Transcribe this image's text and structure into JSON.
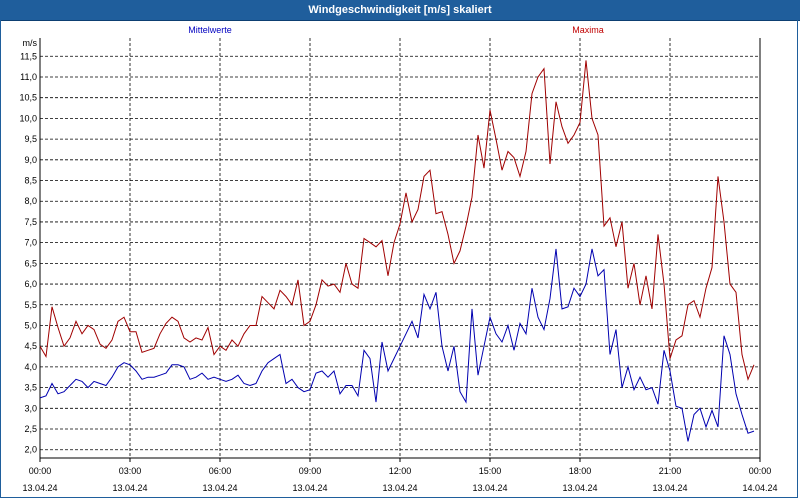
{
  "window": {
    "title": "Windgeschwindigkeit [m/s] skaliert"
  },
  "chart_data": {
    "type": "line",
    "ylabel": "m/s",
    "ylim": [
      1.8,
      11.7
    ],
    "yticks": [
      "2,0",
      "2,5",
      "3,0",
      "3,5",
      "4,0",
      "4,5",
      "5,0",
      "5,5",
      "6,0",
      "6,5",
      "7,0",
      "7,5",
      "8,0",
      "8,5",
      "9,0",
      "9,5",
      "10,0",
      "10,5",
      "11,0",
      "11,5"
    ],
    "ytick_values": [
      2.0,
      2.5,
      3.0,
      3.5,
      4.0,
      4.5,
      5.0,
      5.5,
      6.0,
      6.5,
      7.0,
      7.5,
      8.0,
      8.5,
      9.0,
      9.5,
      10.0,
      10.5,
      11.0,
      11.5
    ],
    "xlim": [
      0,
      24
    ],
    "xticks": [
      {
        "h": 0,
        "time": "00:00",
        "date": "13.04.24"
      },
      {
        "h": 3,
        "time": "03:00",
        "date": "13.04.24"
      },
      {
        "h": 6,
        "time": "06:00",
        "date": "13.04.24"
      },
      {
        "h": 9,
        "time": "09:00",
        "date": "13.04.24"
      },
      {
        "h": 12,
        "time": "12:00",
        "date": "13.04.24"
      },
      {
        "h": 15,
        "time": "15:00",
        "date": "13.04.24"
      },
      {
        "h": 18,
        "time": "18:00",
        "date": "13.04.24"
      },
      {
        "h": 21,
        "time": "21:00",
        "date": "13.04.24"
      },
      {
        "h": 24,
        "time": "00:00",
        "date": "14.04.24"
      }
    ],
    "grid": true,
    "legend_placement": "top",
    "series": [
      {
        "name": "Mittelwerte",
        "color": "#0000b0",
        "legend_color": "#0000c0",
        "points": [
          [
            0.0,
            3.25
          ],
          [
            0.2,
            3.3
          ],
          [
            0.4,
            3.6
          ],
          [
            0.6,
            3.35
          ],
          [
            0.8,
            3.4
          ],
          [
            1.0,
            3.55
          ],
          [
            1.2,
            3.7
          ],
          [
            1.4,
            3.65
          ],
          [
            1.6,
            3.5
          ],
          [
            1.8,
            3.65
          ],
          [
            2.0,
            3.6
          ],
          [
            2.2,
            3.55
          ],
          [
            2.4,
            3.75
          ],
          [
            2.6,
            4.0
          ],
          [
            2.8,
            4.1
          ],
          [
            3.0,
            4.05
          ],
          [
            3.2,
            3.9
          ],
          [
            3.4,
            3.7
          ],
          [
            3.6,
            3.75
          ],
          [
            3.8,
            3.75
          ],
          [
            4.0,
            3.8
          ],
          [
            4.2,
            3.85
          ],
          [
            4.4,
            4.05
          ],
          [
            4.6,
            4.05
          ],
          [
            4.8,
            4.0
          ],
          [
            5.0,
            3.7
          ],
          [
            5.2,
            3.75
          ],
          [
            5.4,
            3.85
          ],
          [
            5.6,
            3.7
          ],
          [
            5.8,
            3.75
          ],
          [
            6.0,
            3.7
          ],
          [
            6.2,
            3.65
          ],
          [
            6.4,
            3.7
          ],
          [
            6.6,
            3.8
          ],
          [
            6.8,
            3.6
          ],
          [
            7.0,
            3.55
          ],
          [
            7.2,
            3.6
          ],
          [
            7.4,
            3.9
          ],
          [
            7.6,
            4.1
          ],
          [
            7.8,
            4.2
          ],
          [
            8.0,
            4.3
          ],
          [
            8.2,
            3.6
          ],
          [
            8.4,
            3.7
          ],
          [
            8.6,
            3.5
          ],
          [
            8.8,
            3.4
          ],
          [
            9.0,
            3.45
          ],
          [
            9.2,
            3.85
          ],
          [
            9.4,
            3.9
          ],
          [
            9.6,
            3.75
          ],
          [
            9.8,
            3.9
          ],
          [
            10.0,
            3.35
          ],
          [
            10.2,
            3.55
          ],
          [
            10.4,
            3.55
          ],
          [
            10.6,
            3.3
          ],
          [
            10.8,
            4.4
          ],
          [
            11.0,
            4.2
          ],
          [
            11.2,
            3.15
          ],
          [
            11.4,
            4.6
          ],
          [
            11.6,
            3.9
          ],
          [
            11.8,
            4.2
          ],
          [
            12.0,
            4.5
          ],
          [
            12.2,
            4.8
          ],
          [
            12.4,
            5.1
          ],
          [
            12.6,
            4.7
          ],
          [
            12.8,
            5.75
          ],
          [
            13.0,
            5.4
          ],
          [
            13.2,
            5.8
          ],
          [
            13.4,
            4.5
          ],
          [
            13.6,
            3.9
          ],
          [
            13.8,
            4.5
          ],
          [
            14.0,
            3.4
          ],
          [
            14.2,
            3.15
          ],
          [
            14.4,
            5.4
          ],
          [
            14.6,
            3.8
          ],
          [
            14.8,
            4.5
          ],
          [
            15.0,
            5.2
          ],
          [
            15.2,
            4.8
          ],
          [
            15.4,
            4.6
          ],
          [
            15.6,
            5.0
          ],
          [
            15.8,
            4.4
          ],
          [
            16.0,
            5.05
          ],
          [
            16.2,
            4.8
          ],
          [
            16.4,
            5.9
          ],
          [
            16.6,
            5.2
          ],
          [
            16.8,
            4.9
          ],
          [
            17.0,
            5.65
          ],
          [
            17.2,
            6.85
          ],
          [
            17.4,
            5.4
          ],
          [
            17.6,
            5.45
          ],
          [
            17.8,
            5.9
          ],
          [
            18.0,
            5.7
          ],
          [
            18.2,
            6.0
          ],
          [
            18.4,
            6.85
          ],
          [
            18.6,
            6.2
          ],
          [
            18.8,
            6.35
          ],
          [
            19.0,
            4.3
          ],
          [
            19.2,
            4.9
          ],
          [
            19.4,
            3.5
          ],
          [
            19.6,
            4.0
          ],
          [
            19.8,
            3.45
          ],
          [
            20.0,
            3.75
          ],
          [
            20.2,
            3.45
          ],
          [
            20.4,
            3.5
          ],
          [
            20.6,
            3.1
          ],
          [
            20.8,
            4.4
          ],
          [
            21.0,
            3.9
          ],
          [
            21.2,
            3.05
          ],
          [
            21.4,
            3.0
          ],
          [
            21.6,
            2.2
          ],
          [
            21.8,
            2.85
          ],
          [
            22.0,
            3.0
          ],
          [
            22.2,
            2.55
          ],
          [
            22.4,
            2.95
          ],
          [
            22.6,
            2.55
          ],
          [
            22.8,
            4.75
          ],
          [
            23.0,
            4.3
          ],
          [
            23.2,
            3.35
          ],
          [
            23.4,
            2.85
          ],
          [
            23.6,
            2.4
          ],
          [
            23.8,
            2.45
          ]
        ]
      },
      {
        "name": "Maxima",
        "color": "#a00000",
        "legend_color": "#c00000",
        "points": [
          [
            0.0,
            4.5
          ],
          [
            0.2,
            4.25
          ],
          [
            0.4,
            5.45
          ],
          [
            0.6,
            4.95
          ],
          [
            0.8,
            4.5
          ],
          [
            1.0,
            4.7
          ],
          [
            1.2,
            5.1
          ],
          [
            1.4,
            4.8
          ],
          [
            1.6,
            5.0
          ],
          [
            1.8,
            4.9
          ],
          [
            2.0,
            4.55
          ],
          [
            2.2,
            4.45
          ],
          [
            2.4,
            4.65
          ],
          [
            2.6,
            5.1
          ],
          [
            2.8,
            5.2
          ],
          [
            3.0,
            4.85
          ],
          [
            3.2,
            4.85
          ],
          [
            3.4,
            4.35
          ],
          [
            3.6,
            4.4
          ],
          [
            3.8,
            4.45
          ],
          [
            4.0,
            4.8
          ],
          [
            4.2,
            5.05
          ],
          [
            4.4,
            5.2
          ],
          [
            4.6,
            5.1
          ],
          [
            4.8,
            4.7
          ],
          [
            5.0,
            4.6
          ],
          [
            5.2,
            4.7
          ],
          [
            5.4,
            4.65
          ],
          [
            5.6,
            4.95
          ],
          [
            5.8,
            4.3
          ],
          [
            6.0,
            4.5
          ],
          [
            6.2,
            4.4
          ],
          [
            6.4,
            4.65
          ],
          [
            6.6,
            4.5
          ],
          [
            6.8,
            4.8
          ],
          [
            7.0,
            5.0
          ],
          [
            7.2,
            5.0
          ],
          [
            7.4,
            5.7
          ],
          [
            7.6,
            5.55
          ],
          [
            7.8,
            5.4
          ],
          [
            8.0,
            5.85
          ],
          [
            8.2,
            5.7
          ],
          [
            8.4,
            5.5
          ],
          [
            8.6,
            6.1
          ],
          [
            8.8,
            5.0
          ],
          [
            9.0,
            5.1
          ],
          [
            9.2,
            5.5
          ],
          [
            9.4,
            6.1
          ],
          [
            9.6,
            5.95
          ],
          [
            9.8,
            6.0
          ],
          [
            10.0,
            5.8
          ],
          [
            10.2,
            6.5
          ],
          [
            10.4,
            6.0
          ],
          [
            10.6,
            5.9
          ],
          [
            10.8,
            7.1
          ],
          [
            11.0,
            7.0
          ],
          [
            11.2,
            6.9
          ],
          [
            11.4,
            7.05
          ],
          [
            11.6,
            6.2
          ],
          [
            11.8,
            7.0
          ],
          [
            12.0,
            7.45
          ],
          [
            12.2,
            8.2
          ],
          [
            12.4,
            7.5
          ],
          [
            12.6,
            7.8
          ],
          [
            12.8,
            8.6
          ],
          [
            13.0,
            8.75
          ],
          [
            13.2,
            7.7
          ],
          [
            13.4,
            7.75
          ],
          [
            13.6,
            7.2
          ],
          [
            13.8,
            6.5
          ],
          [
            14.0,
            6.8
          ],
          [
            14.2,
            7.4
          ],
          [
            14.4,
            8.1
          ],
          [
            14.6,
            9.6
          ],
          [
            14.8,
            8.8
          ],
          [
            15.0,
            10.2
          ],
          [
            15.2,
            9.5
          ],
          [
            15.4,
            8.75
          ],
          [
            15.6,
            9.2
          ],
          [
            15.8,
            9.05
          ],
          [
            16.0,
            8.6
          ],
          [
            16.2,
            9.2
          ],
          [
            16.4,
            10.6
          ],
          [
            16.6,
            11.0
          ],
          [
            16.8,
            11.2
          ],
          [
            17.0,
            8.9
          ],
          [
            17.2,
            10.4
          ],
          [
            17.4,
            9.8
          ],
          [
            17.6,
            9.4
          ],
          [
            17.8,
            9.6
          ],
          [
            18.0,
            9.9
          ],
          [
            18.2,
            11.4
          ],
          [
            18.4,
            10.0
          ],
          [
            18.6,
            9.6
          ],
          [
            18.8,
            7.4
          ],
          [
            19.0,
            7.6
          ],
          [
            19.2,
            6.9
          ],
          [
            19.4,
            7.5
          ],
          [
            19.6,
            5.9
          ],
          [
            19.8,
            6.5
          ],
          [
            20.0,
            5.5
          ],
          [
            20.2,
            6.2
          ],
          [
            20.4,
            5.4
          ],
          [
            20.6,
            7.2
          ],
          [
            20.8,
            6.0
          ],
          [
            21.0,
            4.2
          ],
          [
            21.2,
            4.65
          ],
          [
            21.4,
            4.75
          ],
          [
            21.6,
            5.5
          ],
          [
            21.8,
            5.6
          ],
          [
            22.0,
            5.2
          ],
          [
            22.2,
            5.9
          ],
          [
            22.4,
            6.4
          ],
          [
            22.6,
            8.6
          ],
          [
            22.8,
            7.5
          ],
          [
            23.0,
            6.0
          ],
          [
            23.2,
            5.8
          ],
          [
            23.4,
            4.3
          ],
          [
            23.6,
            3.7
          ],
          [
            23.8,
            4.05
          ]
        ]
      }
    ]
  }
}
